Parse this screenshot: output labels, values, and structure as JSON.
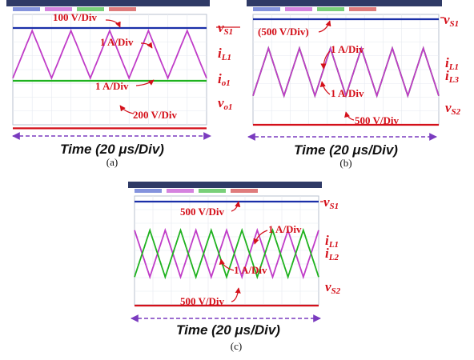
{
  "chart_data": [
    {
      "panel_label": "(a)",
      "type": "line",
      "time_caption": "Time (20 μs/Div)",
      "series": [
        {
          "name": "v_S1",
          "color": "#1a2fa8",
          "shape": "dc",
          "level": 1.0,
          "scale_label": "100 V/Div",
          "label_main": "v",
          "label_sub": "S1"
        },
        {
          "name": "i_L1",
          "color": "#c03cc8",
          "shape": "triangle",
          "level": 0.5,
          "amplitude": 0.45,
          "cycles": 5,
          "scale_label": "1 A/Div",
          "label_main": "i",
          "label_sub": "L1"
        },
        {
          "name": "i_o1",
          "color": "#1fb21f",
          "shape": "dc",
          "level": 0.0,
          "scale_label": "1 A/Div",
          "label_main": "i",
          "label_sub": "o1"
        },
        {
          "name": "v_o1",
          "color": "#d4101a",
          "shape": "dc",
          "level": -0.9,
          "scale_label": "200 V/Div",
          "label_main": "v",
          "label_sub": "o1"
        }
      ]
    },
    {
      "panel_label": "(b)",
      "type": "line",
      "time_caption": "Time (20 μs/Div)",
      "series": [
        {
          "name": "v_S1",
          "color": "#1a2fa8",
          "shape": "dc",
          "level": 1.0,
          "scale_label": "(500 V/Div)",
          "label_main": "v",
          "label_sub": "S1"
        },
        {
          "name": "i_L1",
          "color": "#1fb21f",
          "shape": "triangle",
          "level": 0.0,
          "amplitude": 0.45,
          "cycles": 6,
          "scale_label": "1 A/Div",
          "label_main": "i",
          "label_sub": "L1"
        },
        {
          "name": "i_L3",
          "color": "#c03cc8",
          "shape": "triangle",
          "level": 0.0,
          "amplitude": 0.45,
          "cycles": 6,
          "scale_label": "1 A/Div",
          "label_main": "i",
          "label_sub": "L3"
        },
        {
          "name": "v_S2",
          "color": "#d4101a",
          "shape": "dc",
          "level": -1.0,
          "scale_label": "500 V/Div",
          "label_main": "v",
          "label_sub": "S2"
        }
      ]
    },
    {
      "panel_label": "(c)",
      "type": "line",
      "time_caption": "Time (20 μs/Div)",
      "series": [
        {
          "name": "v_S1",
          "color": "#1a2fa8",
          "shape": "dc",
          "level": 1.0,
          "scale_label": "500 V/Div",
          "label_main": "v",
          "label_sub": "S1"
        },
        {
          "name": "i_L1",
          "color": "#c03cc8",
          "shape": "triangle",
          "level": 0.0,
          "amplitude": 0.45,
          "cycles": 6,
          "phase": 0.5,
          "scale_label": "1 A/Div",
          "label_main": "i",
          "label_sub": "L1"
        },
        {
          "name": "i_L2",
          "color": "#1fb21f",
          "shape": "triangle",
          "level": 0.0,
          "amplitude": 0.45,
          "cycles": 6,
          "phase": 0.0,
          "scale_label": "1 A/Div",
          "label_main": "i",
          "label_sub": "L2"
        },
        {
          "name": "v_S2",
          "color": "#d4101a",
          "shape": "dc",
          "level": -1.0,
          "scale_label": "500 V/Div",
          "label_main": "v",
          "label_sub": "S2"
        }
      ]
    }
  ]
}
